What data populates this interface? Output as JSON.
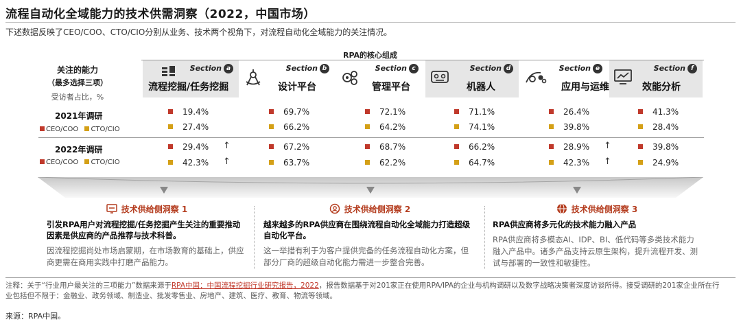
{
  "title": "流程自动化全域能力的技术供需洞察（2022，中国市场）",
  "subtitle": "下述数据反映了CEO/COO、CTO/CIO分别从业务、技术两个视角下，对流程自动化全域能力的关注情况。",
  "core_label": "RPA的核心组成",
  "left_header": {
    "line1": "关注的能力",
    "line2": "（最多选择三项）",
    "line3": "受访者占比，%"
  },
  "colors": {
    "ceo": "#c0392b",
    "cto": "#d4a017",
    "accent": "#b43c1e"
  },
  "legend": {
    "ceo": "CEO/COO",
    "cto": "CTO/CIO"
  },
  "chart_data": {
    "type": "table",
    "section_word": "Section",
    "categories": [
      {
        "letter": "a",
        "name": "流程挖掘/任务挖掘",
        "icon": "process-mining-icon"
      },
      {
        "letter": "b",
        "name": "设计平台",
        "icon": "design-platform-icon"
      },
      {
        "letter": "c",
        "name": "管理平台",
        "icon": "management-platform-icon"
      },
      {
        "letter": "d",
        "name": "机器人",
        "icon": "robot-icon"
      },
      {
        "letter": "e",
        "name": "应用与运维",
        "icon": "app-ops-icon"
      },
      {
        "letter": "f",
        "name": "效能分析",
        "icon": "efficiency-analysis-icon"
      }
    ],
    "rows": [
      {
        "label": "2021年调研",
        "ceo": [
          "19.4%",
          "69.7%",
          "72.1%",
          "71.1%",
          "26.4%",
          "41.3%"
        ],
        "cto": [
          "27.4%",
          "66.2%",
          "64.2%",
          "74.1%",
          "39.8%",
          "28.4%"
        ],
        "ceo_up": [
          false,
          false,
          false,
          false,
          false,
          false
        ],
        "cto_up": [
          false,
          false,
          false,
          false,
          false,
          false
        ]
      },
      {
        "label": "2022年调研",
        "ceo": [
          "29.4%",
          "67.2%",
          "68.7%",
          "66.2%",
          "28.9%",
          "39.8%"
        ],
        "cto": [
          "42.3%",
          "63.7%",
          "62.2%",
          "64.7%",
          "42.3%",
          "24.9%"
        ],
        "ceo_up": [
          true,
          false,
          false,
          false,
          true,
          false
        ],
        "cto_up": [
          true,
          false,
          false,
          false,
          true,
          false
        ]
      }
    ],
    "up_arrow": "↑"
  },
  "insights": [
    {
      "heading": "技术供给侧洞察 1",
      "bold": "引发RPA用户对流程挖掘/任务挖掘产生关注的重要推动因素是供应商的产品推荐与技术科普。",
      "text": "因流程挖掘尚处市场启蒙期，在市场教育的基础上，供应商更需在商用实践中打磨产品能力。"
    },
    {
      "heading": "技术供给侧洞察 2",
      "bold": "越来越多的RPA供应商在围绕流程自动化全域能力打造超级自动化平台。",
      "text": "这一举措有利于为客户提供完备的任务流程自动化方案，但部分厂商的超级自动化能力需进一步整合完善。"
    },
    {
      "heading": "技术供给侧洞察 3",
      "bold": "RPA供应商将多元化的技术能力融入产品",
      "text": "RPA供应商将多模态AI、IDP、BI、低代码等多类技术能力融入产品中。诸多产品支持云原生架构，提升流程开发、测试与部署的一致性和敏捷性。"
    }
  ],
  "note": {
    "prefix": "注释：关于“行业用户最关注的三项能力”数据来源于",
    "link": "RPA中国：中国流程挖掘行业研究报告，2022",
    "suffix": "，报告数据基于对201家正在使用RPA/IPA的企业与机构调研以及数字战略决策者深度访谈所得。接受调研的201家企业所在行业包括但不限于：金融业、政务领域、制造业、批发零售业、房地产、建筑、医疗、教育、物流等领域。"
  },
  "source": "来源：RPA中国。"
}
